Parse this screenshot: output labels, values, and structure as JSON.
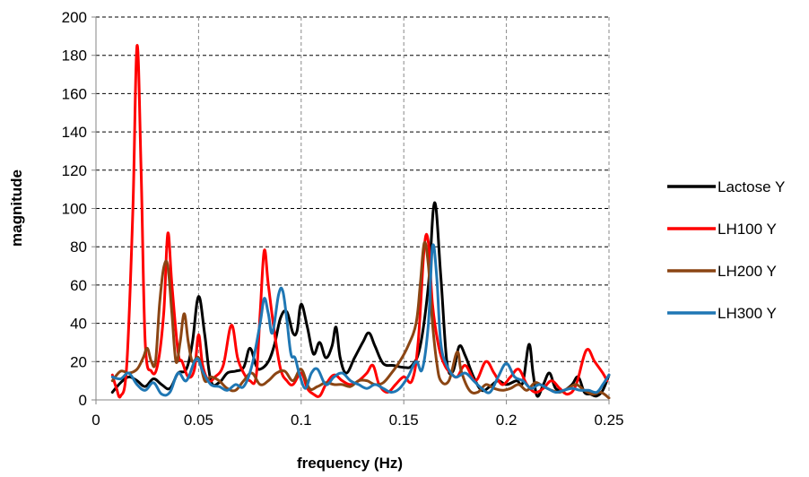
{
  "chart_data": {
    "type": "line",
    "xlabel": "frequency (Hz)",
    "ylabel": "magnitude",
    "xlim": [
      0,
      0.25
    ],
    "ylim": [
      0,
      200
    ],
    "xticks": [
      "0",
      "0.05",
      "0.1",
      "0.15",
      "0.2",
      "0.25"
    ],
    "yticks": [
      "0",
      "20",
      "40",
      "60",
      "80",
      "100",
      "120",
      "140",
      "160",
      "180",
      "200"
    ],
    "grid": "dashed",
    "legend_position": "right",
    "series": [
      {
        "name": "Lactose Y",
        "color": "#000000",
        "points": [
          [
            0.008,
            4
          ],
          [
            0.012,
            9
          ],
          [
            0.016,
            12
          ],
          [
            0.02,
            10
          ],
          [
            0.024,
            7
          ],
          [
            0.028,
            11
          ],
          [
            0.032,
            8
          ],
          [
            0.036,
            6
          ],
          [
            0.04,
            14
          ],
          [
            0.044,
            16
          ],
          [
            0.047,
            30
          ],
          [
            0.05,
            54
          ],
          [
            0.053,
            34
          ],
          [
            0.056,
            10
          ],
          [
            0.06,
            9
          ],
          [
            0.064,
            14
          ],
          [
            0.068,
            15
          ],
          [
            0.072,
            17
          ],
          [
            0.075,
            27
          ],
          [
            0.078,
            18
          ],
          [
            0.08,
            16
          ],
          [
            0.084,
            20
          ],
          [
            0.087,
            29
          ],
          [
            0.09,
            43
          ],
          [
            0.093,
            46
          ],
          [
            0.096,
            35
          ],
          [
            0.098,
            36
          ],
          [
            0.1,
            50
          ],
          [
            0.103,
            38
          ],
          [
            0.106,
            24
          ],
          [
            0.109,
            30
          ],
          [
            0.112,
            22
          ],
          [
            0.115,
            28
          ],
          [
            0.117,
            38
          ],
          [
            0.119,
            22
          ],
          [
            0.122,
            14
          ],
          [
            0.126,
            22
          ],
          [
            0.13,
            30
          ],
          [
            0.133,
            35
          ],
          [
            0.136,
            28
          ],
          [
            0.14,
            19
          ],
          [
            0.145,
            18
          ],
          [
            0.15,
            17
          ],
          [
            0.154,
            18
          ],
          [
            0.158,
            28
          ],
          [
            0.162,
            60
          ],
          [
            0.165,
            103
          ],
          [
            0.168,
            65
          ],
          [
            0.171,
            20
          ],
          [
            0.174,
            15
          ],
          [
            0.177,
            28
          ],
          [
            0.18,
            23
          ],
          [
            0.184,
            12
          ],
          [
            0.188,
            5
          ],
          [
            0.192,
            7
          ],
          [
            0.196,
            10
          ],
          [
            0.2,
            8
          ],
          [
            0.205,
            10
          ],
          [
            0.208,
            9
          ],
          [
            0.211,
            29
          ],
          [
            0.213,
            14
          ],
          [
            0.215,
            2
          ],
          [
            0.218,
            8
          ],
          [
            0.221,
            14
          ],
          [
            0.224,
            6
          ],
          [
            0.228,
            5
          ],
          [
            0.232,
            8
          ],
          [
            0.235,
            12
          ],
          [
            0.238,
            4
          ],
          [
            0.241,
            3
          ],
          [
            0.244,
            2
          ],
          [
            0.247,
            5
          ],
          [
            0.25,
            13
          ]
        ]
      },
      {
        "name": "LH100 Y",
        "color": "#ff0000",
        "points": [
          [
            0.008,
            13
          ],
          [
            0.01,
            6
          ],
          [
            0.012,
            2
          ],
          [
            0.015,
            18
          ],
          [
            0.018,
            100
          ],
          [
            0.02,
            185
          ],
          [
            0.022,
            120
          ],
          [
            0.024,
            30
          ],
          [
            0.027,
            15
          ],
          [
            0.03,
            18
          ],
          [
            0.033,
            45
          ],
          [
            0.035,
            87
          ],
          [
            0.037,
            60
          ],
          [
            0.04,
            25
          ],
          [
            0.042,
            20
          ],
          [
            0.045,
            12
          ],
          [
            0.048,
            16
          ],
          [
            0.05,
            34
          ],
          [
            0.052,
            18
          ],
          [
            0.055,
            10
          ],
          [
            0.058,
            12
          ],
          [
            0.062,
            18
          ],
          [
            0.066,
            39
          ],
          [
            0.069,
            22
          ],
          [
            0.072,
            14
          ],
          [
            0.075,
            10
          ],
          [
            0.078,
            12
          ],
          [
            0.08,
            45
          ],
          [
            0.082,
            78
          ],
          [
            0.084,
            60
          ],
          [
            0.087,
            35
          ],
          [
            0.09,
            16
          ],
          [
            0.093,
            10
          ],
          [
            0.096,
            8
          ],
          [
            0.1,
            14
          ],
          [
            0.103,
            6
          ],
          [
            0.106,
            3
          ],
          [
            0.109,
            2
          ],
          [
            0.112,
            8
          ],
          [
            0.116,
            13
          ],
          [
            0.12,
            10
          ],
          [
            0.124,
            8
          ],
          [
            0.128,
            10
          ],
          [
            0.132,
            14
          ],
          [
            0.135,
            18
          ],
          [
            0.138,
            8
          ],
          [
            0.142,
            4
          ],
          [
            0.146,
            8
          ],
          [
            0.15,
            12
          ],
          [
            0.154,
            10
          ],
          [
            0.157,
            30
          ],
          [
            0.16,
            80
          ],
          [
            0.162,
            82
          ],
          [
            0.164,
            50
          ],
          [
            0.167,
            28
          ],
          [
            0.17,
            18
          ],
          [
            0.173,
            14
          ],
          [
            0.176,
            12
          ],
          [
            0.18,
            18
          ],
          [
            0.185,
            10
          ],
          [
            0.19,
            20
          ],
          [
            0.194,
            14
          ],
          [
            0.198,
            8
          ],
          [
            0.202,
            12
          ],
          [
            0.206,
            16
          ],
          [
            0.21,
            8
          ],
          [
            0.214,
            4
          ],
          [
            0.218,
            6
          ],
          [
            0.222,
            10
          ],
          [
            0.226,
            6
          ],
          [
            0.23,
            3
          ],
          [
            0.234,
            8
          ],
          [
            0.239,
            26
          ],
          [
            0.243,
            20
          ],
          [
            0.247,
            14
          ],
          [
            0.249,
            10
          ]
        ]
      },
      {
        "name": "LH200 Y",
        "color": "#8b4513",
        "points": [
          [
            0.008,
            10
          ],
          [
            0.012,
            15
          ],
          [
            0.016,
            14
          ],
          [
            0.02,
            16
          ],
          [
            0.023,
            22
          ],
          [
            0.025,
            27
          ],
          [
            0.027,
            20
          ],
          [
            0.029,
            20
          ],
          [
            0.031,
            50
          ],
          [
            0.033,
            69
          ],
          [
            0.035,
            70
          ],
          [
            0.037,
            45
          ],
          [
            0.039,
            20
          ],
          [
            0.041,
            30
          ],
          [
            0.043,
            45
          ],
          [
            0.045,
            30
          ],
          [
            0.047,
            20
          ],
          [
            0.05,
            22
          ],
          [
            0.053,
            10
          ],
          [
            0.056,
            12
          ],
          [
            0.06,
            10
          ],
          [
            0.064,
            6
          ],
          [
            0.068,
            5
          ],
          [
            0.072,
            10
          ],
          [
            0.076,
            14
          ],
          [
            0.08,
            8
          ],
          [
            0.084,
            10
          ],
          [
            0.088,
            14
          ],
          [
            0.092,
            15
          ],
          [
            0.096,
            10
          ],
          [
            0.1,
            16
          ],
          [
            0.104,
            6
          ],
          [
            0.108,
            7
          ],
          [
            0.112,
            9
          ],
          [
            0.116,
            8
          ],
          [
            0.12,
            8
          ],
          [
            0.124,
            7
          ],
          [
            0.128,
            10
          ],
          [
            0.132,
            10
          ],
          [
            0.136,
            8
          ],
          [
            0.14,
            9
          ],
          [
            0.144,
            14
          ],
          [
            0.148,
            20
          ],
          [
            0.152,
            28
          ],
          [
            0.156,
            40
          ],
          [
            0.158,
            60
          ],
          [
            0.16,
            82
          ],
          [
            0.162,
            70
          ],
          [
            0.164,
            40
          ],
          [
            0.166,
            20
          ],
          [
            0.168,
            10
          ],
          [
            0.172,
            10
          ],
          [
            0.176,
            25
          ],
          [
            0.178,
            15
          ],
          [
            0.182,
            5
          ],
          [
            0.186,
            4
          ],
          [
            0.19,
            8
          ],
          [
            0.194,
            6
          ],
          [
            0.198,
            5
          ],
          [
            0.202,
            6
          ],
          [
            0.206,
            8
          ],
          [
            0.21,
            5
          ],
          [
            0.214,
            9
          ],
          [
            0.218,
            7
          ],
          [
            0.222,
            5
          ],
          [
            0.226,
            4
          ],
          [
            0.23,
            6
          ],
          [
            0.234,
            8
          ],
          [
            0.238,
            5
          ],
          [
            0.242,
            3
          ],
          [
            0.246,
            4
          ],
          [
            0.25,
            1
          ]
        ]
      },
      {
        "name": "LH300 Y",
        "color": "#1f77b4",
        "points": [
          [
            0.008,
            12
          ],
          [
            0.012,
            11
          ],
          [
            0.016,
            14
          ],
          [
            0.02,
            8
          ],
          [
            0.024,
            5
          ],
          [
            0.028,
            9
          ],
          [
            0.032,
            3
          ],
          [
            0.036,
            4
          ],
          [
            0.04,
            14
          ],
          [
            0.044,
            10
          ],
          [
            0.048,
            20
          ],
          [
            0.05,
            21
          ],
          [
            0.052,
            15
          ],
          [
            0.056,
            8
          ],
          [
            0.06,
            7
          ],
          [
            0.064,
            5
          ],
          [
            0.068,
            8
          ],
          [
            0.072,
            7
          ],
          [
            0.076,
            18
          ],
          [
            0.08,
            40
          ],
          [
            0.082,
            53
          ],
          [
            0.084,
            45
          ],
          [
            0.086,
            35
          ],
          [
            0.089,
            55
          ],
          [
            0.091,
            57
          ],
          [
            0.093,
            42
          ],
          [
            0.095,
            24
          ],
          [
            0.097,
            22
          ],
          [
            0.099,
            14
          ],
          [
            0.102,
            6
          ],
          [
            0.105,
            14
          ],
          [
            0.108,
            16
          ],
          [
            0.112,
            8
          ],
          [
            0.116,
            12
          ],
          [
            0.12,
            14
          ],
          [
            0.124,
            10
          ],
          [
            0.128,
            8
          ],
          [
            0.132,
            6
          ],
          [
            0.136,
            8
          ],
          [
            0.14,
            6
          ],
          [
            0.144,
            4
          ],
          [
            0.148,
            6
          ],
          [
            0.152,
            12
          ],
          [
            0.156,
            20
          ],
          [
            0.159,
            16
          ],
          [
            0.162,
            40
          ],
          [
            0.164,
            80
          ],
          [
            0.166,
            65
          ],
          [
            0.168,
            30
          ],
          [
            0.171,
            18
          ],
          [
            0.175,
            12
          ],
          [
            0.18,
            14
          ],
          [
            0.184,
            10
          ],
          [
            0.188,
            6
          ],
          [
            0.192,
            4
          ],
          [
            0.196,
            12
          ],
          [
            0.2,
            19
          ],
          [
            0.204,
            12
          ],
          [
            0.208,
            10
          ],
          [
            0.212,
            6
          ],
          [
            0.216,
            8
          ],
          [
            0.22,
            6
          ],
          [
            0.224,
            4
          ],
          [
            0.228,
            5
          ],
          [
            0.232,
            6
          ],
          [
            0.236,
            5
          ],
          [
            0.24,
            5
          ],
          [
            0.244,
            4
          ],
          [
            0.247,
            8
          ],
          [
            0.25,
            13
          ]
        ]
      }
    ]
  }
}
